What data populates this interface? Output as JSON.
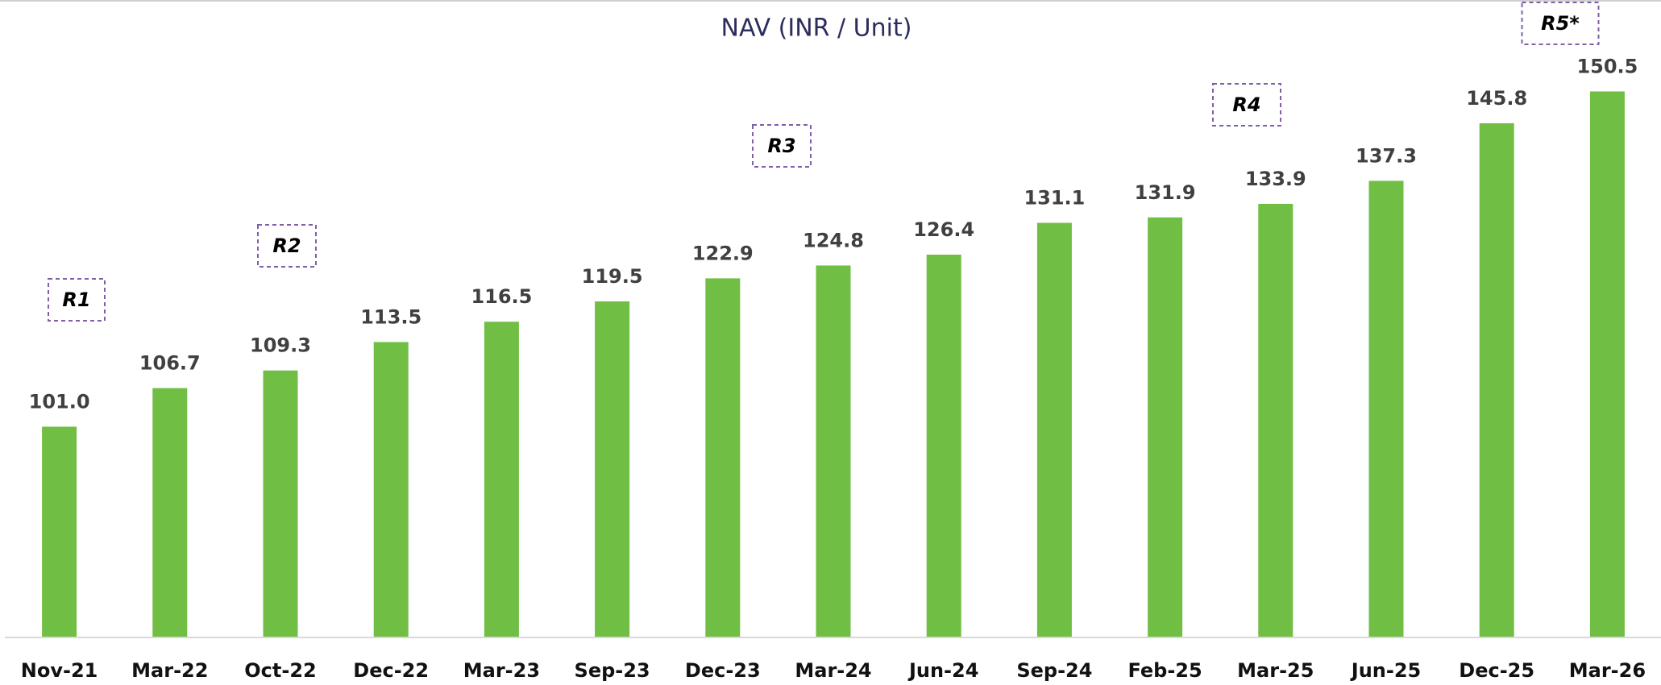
{
  "chart_data": {
    "type": "bar",
    "title": "NAV (INR / Unit)",
    "categories": [
      "Nov-21",
      "Mar-22",
      "Oct-22",
      "Dec-22",
      "Mar-23",
      "Sep-23",
      "Dec-23",
      "Mar-24",
      "Jun-24",
      "Sep-24",
      "Feb-25",
      "Mar-25",
      "Jun-25",
      "Dec-25",
      "Mar-26"
    ],
    "values": [
      101.0,
      106.7,
      109.3,
      113.5,
      116.5,
      119.5,
      122.9,
      124.8,
      126.4,
      131.1,
      131.9,
      133.9,
      137.3,
      145.8,
      150.5
    ],
    "value_labels": [
      "101.0",
      "106.7",
      "109.3",
      "113.5",
      "116.5",
      "119.5",
      "122.9",
      "124.8",
      "126.4",
      "131.1",
      "131.9",
      "133.9",
      "137.3",
      "145.8",
      "150.5"
    ],
    "color": "#70bf44",
    "ylim": [
      70,
      164
    ],
    "annotations": [
      "R1",
      "R2",
      "R3",
      "R4",
      "R5*"
    ]
  }
}
